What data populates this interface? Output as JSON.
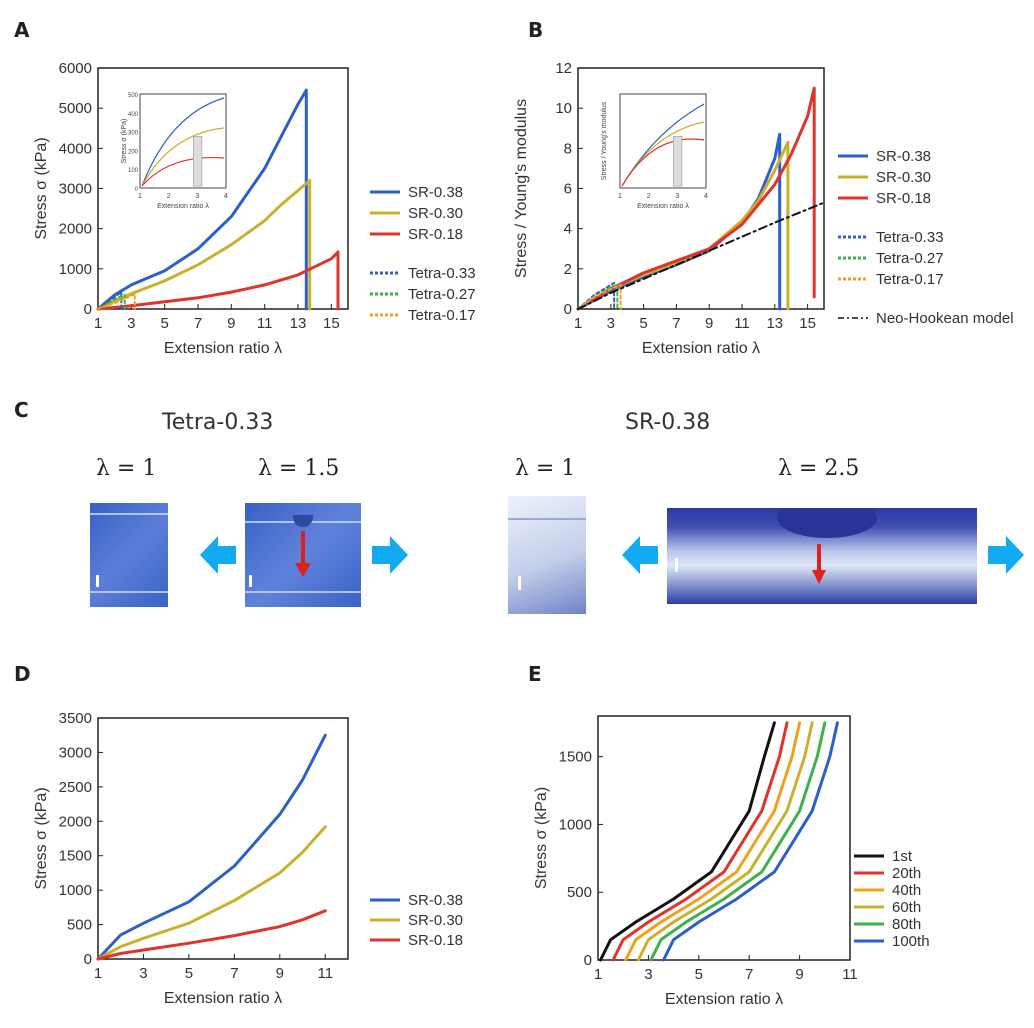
{
  "panels": {
    "A": "A",
    "B": "B",
    "C": "C",
    "D": "D",
    "E": "E"
  },
  "colors": {
    "blue": "#2b5fc9",
    "yellow": "#c9b12b",
    "red": "#e0332a",
    "green": "#3cb34a",
    "orange": "#f0a01e",
    "black": "#111111",
    "cyan_arrow": "#12aaf0"
  },
  "panelC": {
    "tetra_title": "Tetra-0.33",
    "sr_title": "SR-0.38",
    "lambda_labels": [
      "λ = 1",
      "λ = 1.5",
      "λ = 1",
      "λ = 2.5"
    ]
  },
  "chart_data": [
    {
      "id": "A",
      "type": "line",
      "xlabel": "Extension ratio λ",
      "ylabel": "Stress σ (kPa)",
      "xlim": [
        1,
        16
      ],
      "ylim": [
        0,
        6000
      ],
      "xticks": [
        "1",
        "3",
        "5",
        "7",
        "9",
        "11",
        "13",
        "15"
      ],
      "yticks": [
        "0",
        "1000",
        "2000",
        "3000",
        "4000",
        "5000",
        "6000"
      ],
      "legend": [
        "SR-0.38",
        "SR-0.30",
        "SR-0.18",
        "Tetra-0.33",
        "Tetra-0.27",
        "Tetra-0.17"
      ],
      "legend_placement": "right",
      "series": [
        {
          "name": "SR-0.38",
          "color": "blue",
          "x": [
            1,
            2,
            3,
            5,
            7,
            9,
            11,
            12,
            13,
            13.5,
            13.5
          ],
          "y": [
            0,
            350,
            600,
            950,
            1500,
            2300,
            3500,
            4300,
            5100,
            5450,
            0
          ]
        },
        {
          "name": "SR-0.30",
          "color": "yellow",
          "x": [
            1,
            2,
            3,
            5,
            7,
            9,
            11,
            12,
            13,
            13.7,
            13.7
          ],
          "y": [
            0,
            200,
            380,
            700,
            1100,
            1600,
            2200,
            2600,
            2950,
            3200,
            0
          ]
        },
        {
          "name": "SR-0.18",
          "color": "red",
          "x": [
            1,
            3,
            5,
            7,
            9,
            11,
            13,
            14,
            15,
            15.4,
            15.4
          ],
          "y": [
            0,
            80,
            180,
            280,
            420,
            600,
            850,
            1050,
            1250,
            1420,
            0
          ]
        },
        {
          "name": "Tetra-0.33",
          "color": "blue",
          "dashed": true,
          "x": [
            1,
            1.5,
            2,
            2.4,
            2.4
          ],
          "y": [
            0,
            150,
            300,
            420,
            0
          ]
        },
        {
          "name": "Tetra-0.27",
          "color": "green",
          "dashed": true,
          "x": [
            1,
            1.5,
            2,
            2.6,
            2.6
          ],
          "y": [
            0,
            120,
            250,
            350,
            0
          ]
        },
        {
          "name": "Tetra-0.17",
          "color": "orange",
          "dashed": true,
          "x": [
            1,
            2,
            3,
            3.2,
            3.2
          ],
          "y": [
            0,
            150,
            330,
            380,
            0
          ]
        }
      ],
      "inset": {
        "xlabel": "Extension ratio λ",
        "ylabel": "Stress σ (kPa)",
        "xticks": [
          "1",
          "2",
          "3",
          "4"
        ],
        "yticks": [
          "0",
          "100",
          "200",
          "300",
          "400",
          "500"
        ]
      }
    },
    {
      "id": "B",
      "type": "line",
      "xlabel": "Extension ratio λ",
      "ylabel": "Stress / Young's modulus",
      "xlim": [
        1,
        16
      ],
      "ylim": [
        0,
        12
      ],
      "xticks": [
        "1",
        "3",
        "5",
        "7",
        "9",
        "11",
        "13",
        "15"
      ],
      "yticks": [
        "0",
        "2",
        "4",
        "6",
        "8",
        "10",
        "12"
      ],
      "legend": [
        "SR-0.38",
        "SR-0.30",
        "SR-0.18",
        "Tetra-0.33",
        "Tetra-0.27",
        "Tetra-0.17",
        "Neo-Hookean model"
      ],
      "legend_placement": "right",
      "series": [
        {
          "name": "SR-0.38",
          "color": "blue",
          "x": [
            1,
            3,
            5,
            7,
            9,
            11,
            12,
            13,
            13.3,
            13.3
          ],
          "y": [
            0,
            0.9,
            1.6,
            2.2,
            2.9,
            4.3,
            5.5,
            7.5,
            8.7,
            0
          ]
        },
        {
          "name": "SR-0.30",
          "color": "yellow",
          "x": [
            1,
            3,
            5,
            7,
            9,
            11,
            12,
            13,
            13.8,
            13.8
          ],
          "y": [
            0,
            1.0,
            1.7,
            2.3,
            3.0,
            4.4,
            5.4,
            6.9,
            8.3,
            0
          ]
        },
        {
          "name": "SR-0.18",
          "color": "red",
          "x": [
            1,
            3,
            5,
            7,
            9,
            11,
            13,
            14,
            15,
            15.4,
            15.4
          ],
          "y": [
            0,
            1.0,
            1.8,
            2.4,
            3.0,
            4.2,
            6.2,
            7.7,
            9.6,
            11.0,
            0.6
          ]
        },
        {
          "name": "Tetra-0.33",
          "color": "blue",
          "dashed": true,
          "x": [
            1,
            2,
            3,
            3.2,
            3.2
          ],
          "y": [
            0,
            0.7,
            1.2,
            1.3,
            0
          ]
        },
        {
          "name": "Tetra-0.27",
          "color": "green",
          "dashed": true,
          "x": [
            1,
            2,
            3,
            3.4,
            3.4
          ],
          "y": [
            0,
            0.6,
            1.1,
            1.2,
            0
          ]
        },
        {
          "name": "Tetra-0.17",
          "color": "orange",
          "dashed": true,
          "x": [
            1,
            2,
            3,
            3.6,
            3.6
          ],
          "y": [
            0,
            0.6,
            1.0,
            1.2,
            0
          ]
        },
        {
          "name": "Neo-Hookean model",
          "color": "black",
          "dashdot": true,
          "x": [
            1,
            3,
            5,
            7,
            9,
            11,
            13,
            16
          ],
          "y": [
            0,
            0.8,
            1.5,
            2.2,
            2.9,
            3.6,
            4.3,
            5.3
          ]
        }
      ],
      "inset": {
        "xlabel": "Extension ratio λ",
        "ylabel": "Stress / Young's modulus",
        "xticks": [
          "1",
          "2",
          "3",
          "4"
        ]
      }
    },
    {
      "id": "D",
      "type": "line",
      "xlabel": "Extension ratio λ",
      "ylabel": "Stress σ (kPa)",
      "xlim": [
        1,
        12
      ],
      "ylim": [
        0,
        3500
      ],
      "xticks": [
        "1",
        "3",
        "5",
        "7",
        "9",
        "11"
      ],
      "yticks": [
        "0",
        "500",
        "1000",
        "1500",
        "2000",
        "2500",
        "3000",
        "3500"
      ],
      "legend": [
        "SR-0.38",
        "SR-0.30",
        "SR-0.18"
      ],
      "legend_placement": "bottom-right",
      "series": [
        {
          "name": "SR-0.38",
          "color": "blue",
          "x": [
            1,
            2,
            3,
            5,
            7,
            9,
            10,
            11
          ],
          "y": [
            0,
            350,
            520,
            830,
            1350,
            2100,
            2600,
            3250
          ]
        },
        {
          "name": "SR-0.30",
          "color": "yellow",
          "x": [
            1,
            2,
            3,
            5,
            7,
            9,
            10,
            11
          ],
          "y": [
            0,
            180,
            300,
            520,
            850,
            1250,
            1550,
            1920
          ]
        },
        {
          "name": "SR-0.18",
          "color": "red",
          "x": [
            1,
            2,
            3,
            5,
            7,
            9,
            10,
            11
          ],
          "y": [
            0,
            80,
            130,
            230,
            340,
            470,
            570,
            700
          ]
        }
      ]
    },
    {
      "id": "E",
      "type": "line",
      "xlabel": "Extension ratio λ",
      "ylabel": "Stress σ (kPa)",
      "xlim": [
        1,
        11
      ],
      "ylim": [
        0,
        1800
      ],
      "xticks": [
        "1",
        "3",
        "5",
        "7",
        "9",
        "11"
      ],
      "yticks": [
        "0",
        "500",
        "1000",
        "1500"
      ],
      "legend": [
        "1st",
        "20th",
        "40th",
        "60th",
        "80th",
        "100th"
      ],
      "legend_placement": "bottom-right",
      "series": [
        {
          "name": "1st",
          "color": "black",
          "x": [
            1.1,
            1.5,
            2.5,
            4,
            5.5,
            7,
            7.6,
            8
          ],
          "y": [
            0,
            150,
            280,
            450,
            650,
            1100,
            1500,
            1750
          ]
        },
        {
          "name": "20th",
          "color": "red",
          "x": [
            1.6,
            2,
            3,
            4.5,
            6,
            7.5,
            8.2,
            8.5
          ],
          "y": [
            0,
            150,
            280,
            450,
            650,
            1100,
            1500,
            1750
          ]
        },
        {
          "name": "40th",
          "color": "orange",
          "x": [
            2.1,
            2.5,
            3.5,
            5,
            6.5,
            8,
            8.7,
            9
          ],
          "y": [
            0,
            150,
            280,
            450,
            650,
            1100,
            1500,
            1750
          ]
        },
        {
          "name": "60th",
          "color": "yellow",
          "x": [
            2.6,
            3,
            4,
            5.5,
            7,
            8.5,
            9.2,
            9.5
          ],
          "y": [
            0,
            150,
            280,
            450,
            650,
            1100,
            1500,
            1750
          ]
        },
        {
          "name": "80th",
          "color": "green",
          "x": [
            3.1,
            3.5,
            4.5,
            6,
            7.5,
            9,
            9.7,
            10
          ],
          "y": [
            0,
            150,
            280,
            450,
            650,
            1100,
            1500,
            1750
          ]
        },
        {
          "name": "100th",
          "color": "blue",
          "x": [
            3.6,
            4,
            5,
            6.5,
            8,
            9.5,
            10.2,
            10.5
          ],
          "y": [
            0,
            150,
            280,
            450,
            650,
            1100,
            1500,
            1750
          ]
        }
      ]
    }
  ]
}
